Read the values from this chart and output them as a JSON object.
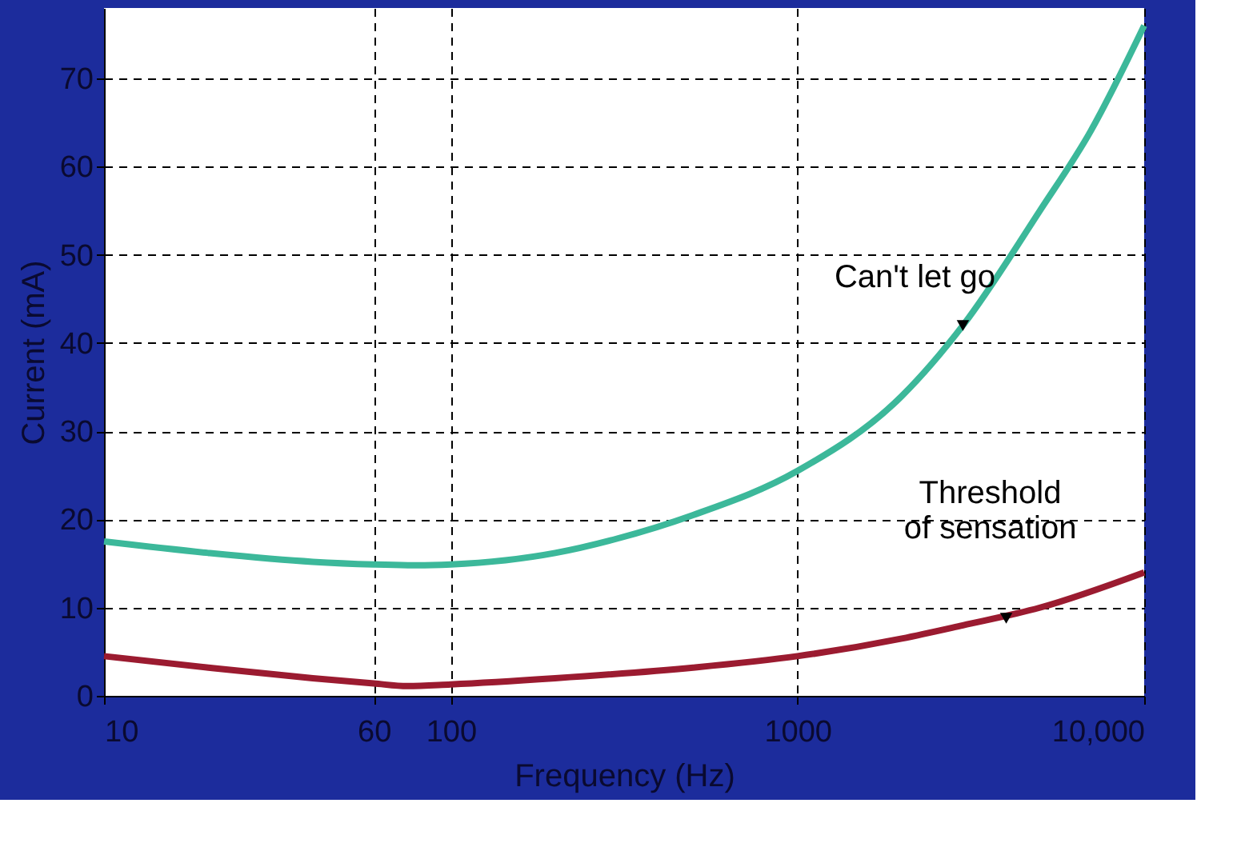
{
  "chart_data": {
    "type": "line",
    "xlabel": "Frequency (Hz)",
    "ylabel": "Current (mA)",
    "log": "x",
    "xlim": [
      10,
      10000
    ],
    "ylim": [
      0,
      78
    ],
    "xticks": [
      10,
      60,
      100,
      1000,
      {
        "value": 10000,
        "label": "10,000"
      }
    ],
    "yticks": [
      0,
      10,
      20,
      30,
      40,
      50,
      60,
      70
    ],
    "grid": true,
    "legend": false,
    "marker": "none",
    "line_style": "solid",
    "series": [
      {
        "color": "#3cb89a",
        "x": [
          10,
          20,
          40,
          60,
          80,
          100,
          200,
          300,
          500,
          1000,
          2000,
          3000,
          5000,
          7000,
          10000
        ],
        "values": [
          17.5,
          16.2,
          15.2,
          14.9,
          14.8,
          14.9,
          16.2,
          17.8,
          20.5,
          25.5,
          34,
          42,
          55,
          64,
          76
        ]
      },
      {
        "color": "#9b1b30",
        "x": [
          10,
          20,
          40,
          60,
          75,
          100,
          200,
          500,
          1000,
          2000,
          3000,
          5000,
          10000
        ],
        "values": [
          4.5,
          3.2,
          2,
          1.4,
          1.1,
          1.3,
          2,
          3.2,
          4.5,
          6.5,
          8,
          10,
          14
        ]
      }
    ],
    "annotations": [
      {
        "text": "Can't let go",
        "x": 3000,
        "y": 42
      },
      {
        "text": "Threshold\nof sensation",
        "x": 4000,
        "y": 8.8
      }
    ]
  }
}
